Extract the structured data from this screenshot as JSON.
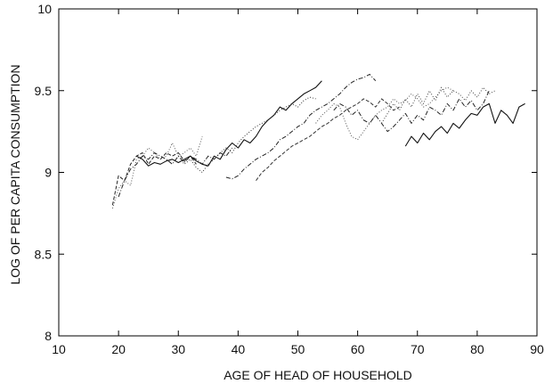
{
  "chart_data": {
    "type": "line",
    "title": "",
    "xlabel": "AGE OF HEAD OF HOUSEHOLD",
    "ylabel": "LOG OF PER CAPITA CONSUMPTION",
    "xlim": [
      10,
      90
    ],
    "ylim": [
      8,
      10
    ],
    "xticks": [
      10,
      20,
      30,
      40,
      50,
      60,
      70,
      80,
      90
    ],
    "yticks": [
      8,
      8.5,
      9,
      9.5,
      10
    ],
    "xtick_labels": [
      "10",
      "20",
      "30",
      "40",
      "50",
      "60",
      "70",
      "80",
      "90"
    ],
    "ytick_labels": [
      "8",
      "8.5",
      "9",
      "9.5",
      "10"
    ],
    "grid": false,
    "legend": "none",
    "series": [
      {
        "style": "dashed",
        "color": "#222222",
        "x": [
          19,
          20,
          21,
          22,
          23,
          24,
          25,
          26,
          27,
          28,
          29,
          30,
          31,
          32,
          33
        ],
        "y": [
          8.8,
          8.98,
          8.95,
          9.05,
          9.1,
          9.12,
          9.05,
          9.1,
          9.08,
          9.12,
          9.1,
          9.12,
          9.07,
          9.1,
          9.05
        ]
      },
      {
        "style": "dotted",
        "color": "#555555",
        "x": [
          19,
          20,
          21,
          22,
          23,
          24,
          25,
          26,
          27,
          28,
          29,
          30,
          31,
          32,
          33,
          34
        ],
        "y": [
          8.78,
          8.9,
          8.95,
          8.92,
          9.08,
          9.1,
          9.15,
          9.12,
          9.08,
          9.1,
          9.18,
          9.1,
          9.12,
          9.15,
          9.1,
          9.22
        ]
      },
      {
        "style": "dash-dot",
        "color": "#222222",
        "x": [
          20,
          21,
          22,
          23,
          24,
          25,
          26,
          27,
          28,
          29,
          30,
          31,
          32,
          33,
          34,
          35,
          36,
          37,
          38,
          39
        ],
        "y": [
          8.85,
          8.95,
          9.02,
          9.05,
          9.1,
          9.08,
          9.12,
          9.1,
          9.08,
          9.05,
          9.1,
          9.06,
          9.1,
          9.08,
          9.05,
          9.1,
          9.08,
          9.12,
          9.1,
          9.15
        ]
      },
      {
        "style": "solid",
        "color": "#111111",
        "x": [
          23,
          24,
          25,
          26,
          27,
          28,
          29,
          30,
          31,
          32,
          33,
          34,
          35,
          36,
          37,
          38,
          39,
          40,
          41,
          42,
          43,
          44,
          45,
          46,
          47,
          48,
          49,
          50,
          51,
          52,
          53,
          54
        ],
        "y": [
          9.1,
          9.08,
          9.04,
          9.06,
          9.05,
          9.07,
          9.08,
          9.06,
          9.08,
          9.1,
          9.07,
          9.05,
          9.04,
          9.1,
          9.08,
          9.14,
          9.18,
          9.15,
          9.2,
          9.18,
          9.22,
          9.28,
          9.32,
          9.35,
          9.4,
          9.38,
          9.42,
          9.45,
          9.48,
          9.5,
          9.52,
          9.56
        ]
      },
      {
        "style": "dotted",
        "color": "#333333",
        "x": [
          30,
          31,
          32,
          33,
          34,
          35,
          36,
          37,
          38,
          39,
          40,
          41,
          42,
          43,
          44,
          45,
          46,
          47,
          48,
          49,
          50,
          51,
          52,
          53
        ],
        "y": [
          9.1,
          9.05,
          9.08,
          9.03,
          9.0,
          9.05,
          9.08,
          9.12,
          9.15,
          9.12,
          9.18,
          9.22,
          9.25,
          9.28,
          9.3,
          9.32,
          9.35,
          9.38,
          9.4,
          9.42,
          9.4,
          9.44,
          9.46,
          9.45
        ]
      },
      {
        "style": "dash-dot",
        "color": "#222222",
        "x": [
          38,
          39,
          40,
          41,
          42,
          43,
          44,
          45,
          46,
          47,
          48,
          49,
          50,
          51,
          52,
          53,
          54,
          55,
          56,
          57,
          58,
          59,
          60,
          61,
          62,
          63
        ],
        "y": [
          8.97,
          8.96,
          8.98,
          9.02,
          9.05,
          9.08,
          9.1,
          9.12,
          9.15,
          9.2,
          9.22,
          9.25,
          9.28,
          9.3,
          9.35,
          9.38,
          9.4,
          9.42,
          9.45,
          9.48,
          9.52,
          9.55,
          9.57,
          9.58,
          9.6,
          9.56
        ]
      },
      {
        "style": "dashed",
        "color": "#333333",
        "x": [
          43,
          44,
          45,
          46,
          47,
          48,
          49,
          50,
          51,
          52,
          53,
          54,
          55,
          56,
          57,
          58,
          59,
          60,
          61,
          62,
          63,
          64,
          65,
          66,
          67
        ],
        "y": [
          8.95,
          9.0,
          9.03,
          9.07,
          9.1,
          9.13,
          9.16,
          9.18,
          9.2,
          9.22,
          9.25,
          9.28,
          9.3,
          9.33,
          9.35,
          9.38,
          9.4,
          9.42,
          9.45,
          9.43,
          9.4,
          9.45,
          9.42,
          9.38,
          9.4
        ]
      },
      {
        "style": "dotted",
        "color": "#555555",
        "x": [
          53,
          54,
          55,
          56,
          57,
          58,
          59,
          60,
          61,
          62,
          63,
          64,
          65,
          66,
          67,
          68,
          69,
          70,
          71,
          72,
          73,
          74,
          75,
          76
        ],
        "y": [
          9.3,
          9.35,
          9.38,
          9.42,
          9.4,
          9.3,
          9.22,
          9.2,
          9.25,
          9.3,
          9.35,
          9.38,
          9.4,
          9.45,
          9.42,
          9.44,
          9.48,
          9.45,
          9.4,
          9.42,
          9.46,
          9.5,
          9.52,
          9.5
        ]
      },
      {
        "style": "dash-dot",
        "color": "#222222",
        "x": [
          56,
          57,
          58,
          59,
          60,
          61,
          62,
          63,
          64,
          65,
          66,
          67,
          68,
          69,
          70,
          71,
          72,
          73,
          74,
          75,
          76,
          77,
          78,
          79,
          80,
          81,
          82
        ],
        "y": [
          9.38,
          9.42,
          9.4,
          9.35,
          9.38,
          9.32,
          9.3,
          9.35,
          9.3,
          9.25,
          9.28,
          9.32,
          9.36,
          9.3,
          9.35,
          9.32,
          9.4,
          9.38,
          9.35,
          9.42,
          9.38,
          9.45,
          9.4,
          9.44,
          9.38,
          9.42,
          9.5
        ]
      },
      {
        "style": "dotted",
        "color": "#444444",
        "x": [
          64,
          65,
          66,
          67,
          68,
          69,
          70,
          71,
          72,
          73,
          74,
          75,
          76,
          77,
          78,
          79,
          80,
          81,
          82,
          83
        ],
        "y": [
          9.3,
          9.36,
          9.42,
          9.38,
          9.45,
          9.4,
          9.48,
          9.42,
          9.5,
          9.44,
          9.52,
          9.46,
          9.5,
          9.48,
          9.44,
          9.5,
          9.46,
          9.52,
          9.48,
          9.5
        ]
      },
      {
        "style": "solid",
        "color": "#111111",
        "x": [
          68,
          69,
          70,
          71,
          72,
          73,
          74,
          75,
          76,
          77,
          78,
          79,
          80,
          81,
          82,
          83,
          84,
          85,
          86,
          87,
          88
        ],
        "y": [
          9.16,
          9.22,
          9.18,
          9.24,
          9.2,
          9.25,
          9.28,
          9.24,
          9.3,
          9.27,
          9.32,
          9.36,
          9.35,
          9.4,
          9.42,
          9.3,
          9.38,
          9.35,
          9.3,
          9.4,
          9.42
        ]
      }
    ]
  }
}
